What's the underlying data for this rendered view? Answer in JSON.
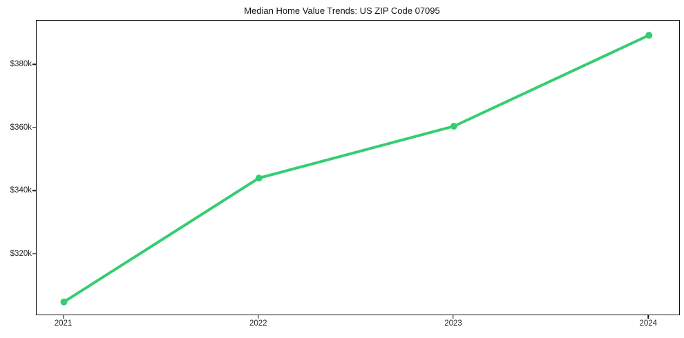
{
  "title": "Median Home Value Trends: US ZIP Code 07095",
  "chart_data": {
    "type": "line",
    "series_name": "Median Home Value",
    "x": [
      2021,
      2022,
      2023,
      2024
    ],
    "x_tick_labels": [
      "2021",
      "2022",
      "2023",
      "2024"
    ],
    "values_usd": [
      305000,
      344200,
      360600,
      389400
    ],
    "y_tick_values": [
      320000,
      340000,
      360000,
      380000
    ],
    "y_tick_labels": [
      "$320k",
      "$340k",
      "$360k",
      "$380k"
    ],
    "ylim": [
      301000,
      394000
    ],
    "xlim": [
      2020.86,
      2024.155
    ],
    "line_color": "#35cd72",
    "marker": "circle",
    "marker_radius": 5,
    "line_width": 4,
    "grid": false,
    "legend": false,
    "background_color": "#ffffff",
    "spine_color": "#121212"
  }
}
